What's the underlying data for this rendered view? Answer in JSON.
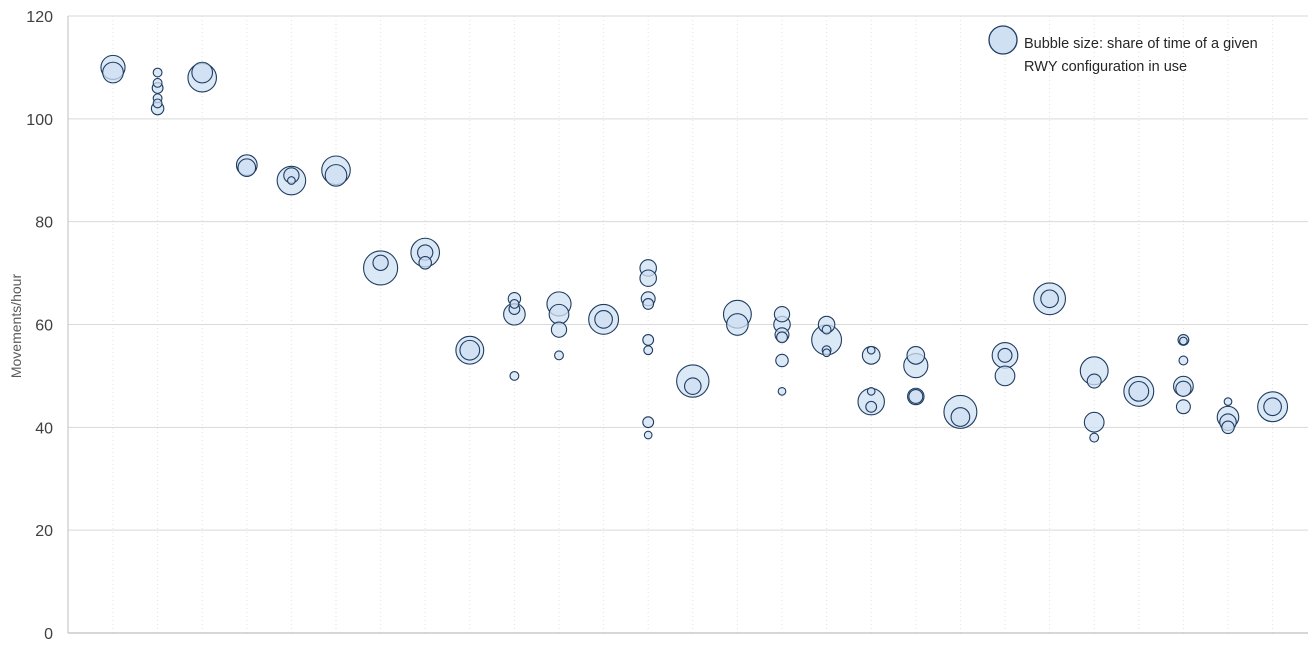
{
  "chart_data": {
    "type": "bubble",
    "ylabel": "Movements/hour",
    "ylim": [
      0,
      120
    ],
    "yticks": [
      0,
      20,
      40,
      60,
      80,
      100,
      120
    ],
    "category_count": 27,
    "grid": "horizontal solid, vertical dotted",
    "legend": {
      "placement": "top-right",
      "lines": [
        "Bubble size: share of time of a given",
        "RWY configuration in use"
      ]
    },
    "colors": {
      "bubble_fill": "#cfe0f3",
      "bubble_stroke": "#1f3c60",
      "grid": "#d9d9d9",
      "axis": "#bfbfbf"
    },
    "points": [
      {
        "x": 1,
        "y": 110,
        "size": 0.3
      },
      {
        "x": 1,
        "y": 109,
        "size": 0.22
      },
      {
        "x": 2,
        "y": 109,
        "size": 0.04
      },
      {
        "x": 2,
        "y": 107,
        "size": 0.04
      },
      {
        "x": 2,
        "y": 106,
        "size": 0.06
      },
      {
        "x": 2,
        "y": 104,
        "size": 0.04
      },
      {
        "x": 2,
        "y": 103,
        "size": 0.04
      },
      {
        "x": 2,
        "y": 102,
        "size": 0.08
      },
      {
        "x": 3,
        "y": 108,
        "size": 0.42
      },
      {
        "x": 3,
        "y": 109,
        "size": 0.22
      },
      {
        "x": 4,
        "y": 91,
        "size": 0.22
      },
      {
        "x": 4,
        "y": 90.5,
        "size": 0.16
      },
      {
        "x": 5,
        "y": 88,
        "size": 0.42
      },
      {
        "x": 5,
        "y": 89,
        "size": 0.12
      },
      {
        "x": 5,
        "y": 88,
        "size": 0.03
      },
      {
        "x": 6,
        "y": 90,
        "size": 0.42
      },
      {
        "x": 6,
        "y": 89,
        "size": 0.24
      },
      {
        "x": 7,
        "y": 71,
        "size": 0.6
      },
      {
        "x": 7,
        "y": 72,
        "size": 0.12
      },
      {
        "x": 8,
        "y": 74,
        "size": 0.42
      },
      {
        "x": 8,
        "y": 74,
        "size": 0.12
      },
      {
        "x": 8,
        "y": 72,
        "size": 0.08
      },
      {
        "x": 9,
        "y": 55,
        "size": 0.4
      },
      {
        "x": 9,
        "y": 55,
        "size": 0.2
      },
      {
        "x": 10,
        "y": 65,
        "size": 0.08
      },
      {
        "x": 10,
        "y": 64,
        "size": 0.04
      },
      {
        "x": 10,
        "y": 63,
        "size": 0.06
      },
      {
        "x": 10,
        "y": 62,
        "size": 0.24
      },
      {
        "x": 10,
        "y": 50,
        "size": 0.04
      },
      {
        "x": 11,
        "y": 64,
        "size": 0.3
      },
      {
        "x": 11,
        "y": 62,
        "size": 0.2
      },
      {
        "x": 11,
        "y": 59,
        "size": 0.12
      },
      {
        "x": 11,
        "y": 54,
        "size": 0.04
      },
      {
        "x": 12,
        "y": 61,
        "size": 0.46
      },
      {
        "x": 12,
        "y": 61,
        "size": 0.16
      },
      {
        "x": 13,
        "y": 71,
        "size": 0.14
      },
      {
        "x": 13,
        "y": 69,
        "size": 0.14
      },
      {
        "x": 13,
        "y": 65,
        "size": 0.1
      },
      {
        "x": 13,
        "y": 64,
        "size": 0.06
      },
      {
        "x": 13,
        "y": 57,
        "size": 0.06
      },
      {
        "x": 13,
        "y": 55,
        "size": 0.04
      },
      {
        "x": 13,
        "y": 41,
        "size": 0.06
      },
      {
        "x": 13,
        "y": 38.5,
        "size": 0.03
      },
      {
        "x": 14,
        "y": 49,
        "size": 0.54
      },
      {
        "x": 14,
        "y": 48,
        "size": 0.14
      },
      {
        "x": 15,
        "y": 62,
        "size": 0.4
      },
      {
        "x": 15,
        "y": 60,
        "size": 0.24
      },
      {
        "x": 16,
        "y": 62,
        "size": 0.12
      },
      {
        "x": 16,
        "y": 60,
        "size": 0.14
      },
      {
        "x": 16,
        "y": 58,
        "size": 0.1
      },
      {
        "x": 16,
        "y": 57.5,
        "size": 0.06
      },
      {
        "x": 16,
        "y": 53,
        "size": 0.08
      },
      {
        "x": 16,
        "y": 47,
        "size": 0.03
      },
      {
        "x": 17,
        "y": 60,
        "size": 0.14
      },
      {
        "x": 17,
        "y": 59,
        "size": 0.04
      },
      {
        "x": 17,
        "y": 57,
        "size": 0.46
      },
      {
        "x": 17,
        "y": 55,
        "size": 0.04
      },
      {
        "x": 17,
        "y": 54.5,
        "size": 0.03
      },
      {
        "x": 18,
        "y": 54,
        "size": 0.16
      },
      {
        "x": 18,
        "y": 55,
        "size": 0.03
      },
      {
        "x": 18,
        "y": 47,
        "size": 0.03
      },
      {
        "x": 18,
        "y": 45,
        "size": 0.36
      },
      {
        "x": 18,
        "y": 44,
        "size": 0.06
      },
      {
        "x": 19,
        "y": 54,
        "size": 0.16
      },
      {
        "x": 19,
        "y": 52,
        "size": 0.3
      },
      {
        "x": 19,
        "y": 46,
        "size": 0.14
      },
      {
        "x": 19,
        "y": 46,
        "size": 0.1
      },
      {
        "x": 20,
        "y": 43,
        "size": 0.56
      },
      {
        "x": 20,
        "y": 42,
        "size": 0.18
      },
      {
        "x": 21,
        "y": 54,
        "size": 0.34
      },
      {
        "x": 21,
        "y": 54,
        "size": 0.1
      },
      {
        "x": 21,
        "y": 50,
        "size": 0.2
      },
      {
        "x": 22,
        "y": 65,
        "size": 0.52
      },
      {
        "x": 22,
        "y": 65,
        "size": 0.16
      },
      {
        "x": 23,
        "y": 51,
        "size": 0.4
      },
      {
        "x": 23,
        "y": 49,
        "size": 0.1
      },
      {
        "x": 23,
        "y": 41,
        "size": 0.2
      },
      {
        "x": 23,
        "y": 38,
        "size": 0.04
      },
      {
        "x": 24,
        "y": 47,
        "size": 0.46
      },
      {
        "x": 24,
        "y": 47,
        "size": 0.2
      },
      {
        "x": 25,
        "y": 57,
        "size": 0.06
      },
      {
        "x": 25,
        "y": 56.8,
        "size": 0.03
      },
      {
        "x": 25,
        "y": 53,
        "size": 0.04
      },
      {
        "x": 25,
        "y": 48,
        "size": 0.2
      },
      {
        "x": 25,
        "y": 47.5,
        "size": 0.12
      },
      {
        "x": 25,
        "y": 44,
        "size": 0.1
      },
      {
        "x": 26,
        "y": 45,
        "size": 0.03
      },
      {
        "x": 26,
        "y": 42,
        "size": 0.24
      },
      {
        "x": 26,
        "y": 41,
        "size": 0.14
      },
      {
        "x": 26,
        "y": 40,
        "size": 0.08
      },
      {
        "x": 27,
        "y": 44,
        "size": 0.46
      },
      {
        "x": 27,
        "y": 44,
        "size": 0.16
      }
    ]
  }
}
